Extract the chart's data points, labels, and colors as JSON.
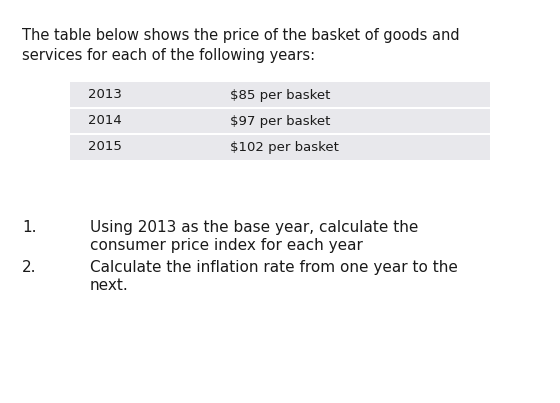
{
  "background_color": "#ffffff",
  "intro_text_line1": "The table below shows the price of the basket of goods and",
  "intro_text_line2": "services for each of the following years:",
  "table_rows": [
    [
      "2013",
      "$85 per basket"
    ],
    [
      "2014",
      "$97 per basket"
    ],
    [
      "2015",
      "$102 per basket"
    ]
  ],
  "table_bg_color": "#e8e8ec",
  "table_text_color": "#1a1a1a",
  "question1_num": "1.",
  "question1_text_line1": "Using 2013 as the base year, calculate the",
  "question1_text_line2": "consumer price index for each year",
  "question2_num": "2.",
  "question2_text_line1": "Calculate the inflation rate from one year to the",
  "question2_text_line2": "next.",
  "font_size_intro": 10.5,
  "font_size_table": 9.5,
  "font_size_questions": 11,
  "text_color": "#1a1a1a"
}
